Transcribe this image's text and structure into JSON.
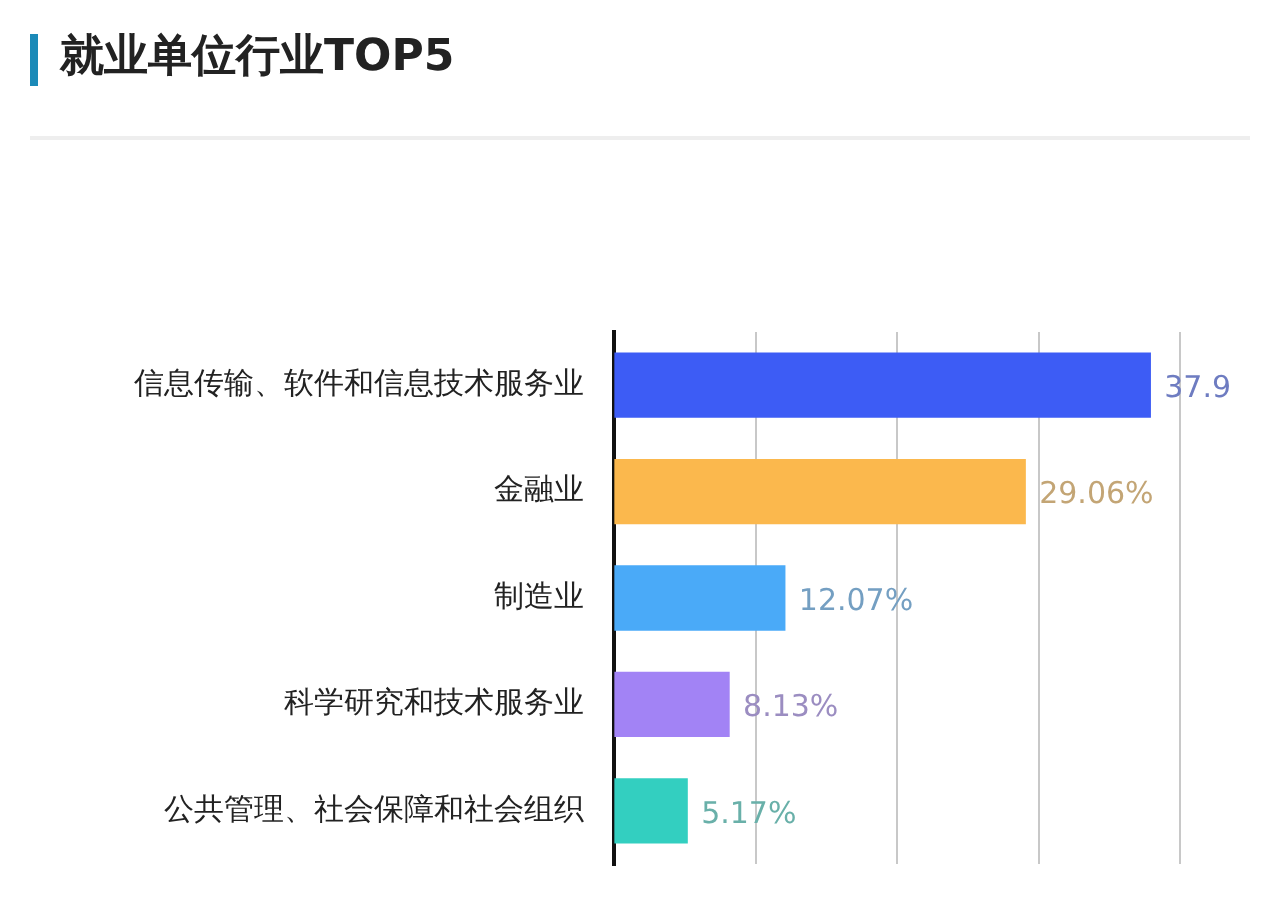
{
  "chart_data": {
    "type": "bar",
    "orientation": "horizontal",
    "title": "就业单位行业TOP5",
    "categories": [
      "信息传输、软件和信息技术服务业",
      "金融业",
      "制造业",
      "科学研究和技术服务业",
      "公共管理、社会保障和社会组织"
    ],
    "values": [
      37.9,
      29.06,
      12.07,
      8.13,
      5.17
    ],
    "colors": [
      "#3d5cf5",
      "#fbb84d",
      "#4aaaf8",
      "#a283f5",
      "#33cfc0"
    ],
    "value_labels": [
      "37.9",
      "29.06%",
      "12.07%",
      "8.13%",
      "5.17%"
    ],
    "xticks": [
      {
        "value": 0,
        "label": null
      },
      {
        "value": 10,
        "label": null
      },
      {
        "value": 20,
        "label": null
      },
      {
        "value": 30,
        "label": null
      },
      {
        "value": 40,
        "label": null
      }
    ],
    "tick_labels": "y",
    "grid": "x",
    "legend": false
  }
}
